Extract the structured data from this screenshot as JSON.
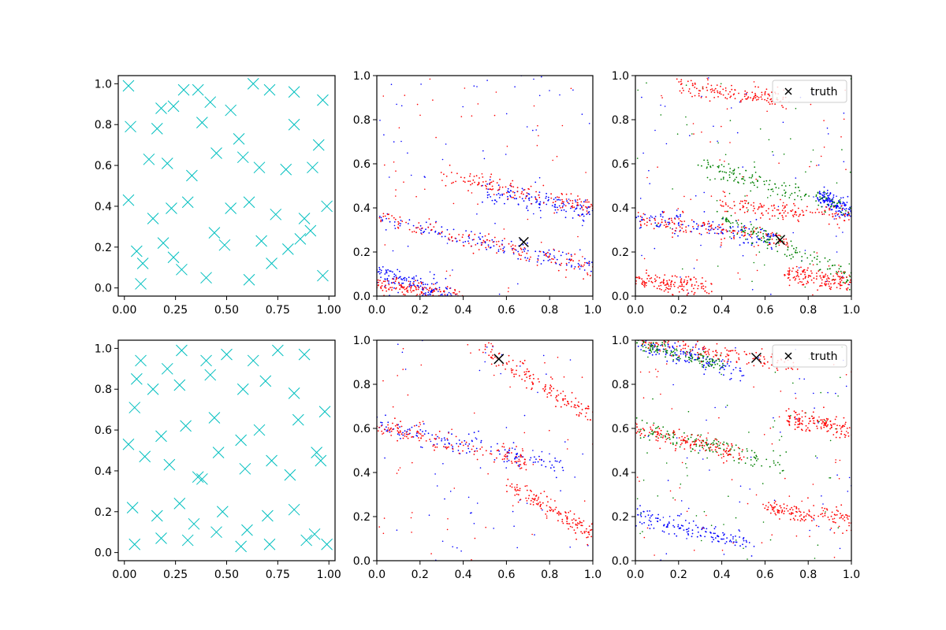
{
  "chart_data": [
    {
      "panel": "row1-col1",
      "type": "scatter",
      "title": "",
      "xlabel": "",
      "ylabel": "",
      "xlim": [
        -0.03,
        1.03
      ],
      "ylim": [
        -0.04,
        1.04
      ],
      "xticks": [
        "0.00",
        "0.25",
        "0.50",
        "0.75",
        "1.00"
      ],
      "yticks": [
        "0.0",
        "0.2",
        "0.4",
        "0.6",
        "0.8",
        "1.0"
      ],
      "grid": false,
      "series": [
        {
          "color": "#00bfbf",
          "marker": "x-large",
          "points": [
            [
              0.02,
              0.99
            ],
            [
              0.08,
              0.02
            ],
            [
              0.03,
              0.79
            ],
            [
              0.18,
              0.88
            ],
            [
              0.24,
              0.89
            ],
            [
              0.29,
              0.97
            ],
            [
              0.36,
              0.97
            ],
            [
              0.42,
              0.91
            ],
            [
              0.52,
              0.87
            ],
            [
              0.63,
              1.0
            ],
            [
              0.71,
              0.97
            ],
            [
              0.83,
              0.96
            ],
            [
              0.97,
              0.92
            ],
            [
              0.12,
              0.63
            ],
            [
              0.21,
              0.61
            ],
            [
              0.33,
              0.55
            ],
            [
              0.45,
              0.66
            ],
            [
              0.58,
              0.64
            ],
            [
              0.66,
              0.59
            ],
            [
              0.79,
              0.58
            ],
            [
              0.92,
              0.59
            ],
            [
              0.02,
              0.43
            ],
            [
              0.14,
              0.34
            ],
            [
              0.23,
              0.39
            ],
            [
              0.31,
              0.42
            ],
            [
              0.52,
              0.39
            ],
            [
              0.61,
              0.42
            ],
            [
              0.74,
              0.36
            ],
            [
              0.88,
              0.34
            ],
            [
              0.99,
              0.4
            ],
            [
              0.06,
              0.18
            ],
            [
              0.19,
              0.22
            ],
            [
              0.28,
              0.09
            ],
            [
              0.4,
              0.05
            ],
            [
              0.49,
              0.21
            ],
            [
              0.61,
              0.04
            ],
            [
              0.72,
              0.12
            ],
            [
              0.86,
              0.24
            ],
            [
              0.97,
              0.06
            ],
            [
              0.16,
              0.78
            ],
            [
              0.38,
              0.81
            ],
            [
              0.56,
              0.73
            ],
            [
              0.83,
              0.8
            ],
            [
              0.95,
              0.7
            ],
            [
              0.09,
              0.12
            ],
            [
              0.24,
              0.15
            ],
            [
              0.44,
              0.27
            ],
            [
              0.67,
              0.23
            ],
            [
              0.8,
              0.19
            ],
            [
              0.91,
              0.28
            ]
          ]
        }
      ]
    },
    {
      "panel": "row1-col2",
      "type": "scatter",
      "title": "",
      "xlabel": "",
      "ylabel": "",
      "xlim": [
        0,
        1
      ],
      "ylim": [
        0,
        1
      ],
      "xticks": [
        "0.0",
        "0.2",
        "0.4",
        "0.6",
        "0.8",
        "1.0"
      ],
      "yticks": [
        "0.0",
        "0.2",
        "0.4",
        "0.6",
        "0.8",
        "1.0"
      ],
      "grid": false,
      "series": [
        {
          "color": "#0000ff",
          "marker": "dot",
          "bands": [
            {
              "x0": 0,
              "y0": 0.36,
              "x1": 1,
              "y1": 0.13
            },
            {
              "x0": 0.5,
              "y0": 0.48,
              "x1": 1,
              "y1": 0.38
            },
            {
              "x0": 0,
              "y0": 0.11,
              "x1": 0.35,
              "y1": 0.0
            }
          ]
        },
        {
          "color": "#ff0000",
          "marker": "dot",
          "bands": [
            {
              "x0": 0,
              "y0": 0.36,
              "x1": 1,
              "y1": 0.13
            },
            {
              "x0": 0.3,
              "y0": 0.55,
              "x1": 1,
              "y1": 0.4
            },
            {
              "x0": 0,
              "y0": 0.05,
              "x1": 0.4,
              "y1": 0.0
            }
          ]
        },
        {
          "name": "truth",
          "color": "#000000",
          "marker": "x",
          "points": [
            [
              0.68,
              0.245
            ]
          ]
        }
      ]
    },
    {
      "panel": "row1-col3",
      "type": "scatter",
      "title": "",
      "xlabel": "",
      "ylabel": "",
      "xlim": [
        0,
        1
      ],
      "ylim": [
        0,
        1
      ],
      "xticks": [
        "0.0",
        "0.2",
        "0.4",
        "0.6",
        "0.8",
        "1.0"
      ],
      "yticks": [
        "0.0",
        "0.2",
        "0.4",
        "0.6",
        "0.8",
        "1.0"
      ],
      "grid": false,
      "legend": {
        "position": "top-right",
        "entries": [
          "truth"
        ]
      },
      "series": [
        {
          "color": "#0000ff",
          "marker": "dot",
          "bands": [
            {
              "x0": 0,
              "y0": 0.36,
              "x1": 0.65,
              "y1": 0.26
            },
            {
              "x0": 0.85,
              "y0": 0.45,
              "x1": 1,
              "y1": 0.38
            }
          ]
        },
        {
          "color": "#008000",
          "marker": "dot",
          "bands": [
            {
              "x0": 0.4,
              "y0": 0.35,
              "x1": 1,
              "y1": 0.08
            },
            {
              "x0": 0.3,
              "y0": 0.6,
              "x1": 1,
              "y1": 0.4
            }
          ]
        },
        {
          "color": "#ff0000",
          "marker": "dot",
          "bands": [
            {
              "x0": 0,
              "y0": 0.35,
              "x1": 0.7,
              "y1": 0.26
            },
            {
              "x0": 0.4,
              "y0": 0.41,
              "x1": 1,
              "y1": 0.36
            },
            {
              "x0": 0.2,
              "y0": 0.95,
              "x1": 0.7,
              "y1": 0.89
            },
            {
              "x0": 0,
              "y0": 0.07,
              "x1": 0.35,
              "y1": 0.04
            },
            {
              "x0": 0.7,
              "y0": 0.1,
              "x1": 1,
              "y1": 0.06
            }
          ]
        },
        {
          "name": "truth",
          "color": "#000000",
          "marker": "x",
          "points": [
            [
              0.67,
              0.255
            ]
          ]
        }
      ]
    },
    {
      "panel": "row2-col1",
      "type": "scatter",
      "title": "",
      "xlabel": "",
      "ylabel": "",
      "xlim": [
        -0.03,
        1.03
      ],
      "ylim": [
        -0.04,
        1.04
      ],
      "xticks": [
        "0.00",
        "0.25",
        "0.50",
        "0.75",
        "1.00"
      ],
      "yticks": [
        "0.0",
        "0.2",
        "0.4",
        "0.6",
        "0.8",
        "1.0"
      ],
      "grid": false,
      "series": [
        {
          "color": "#00bfbf",
          "marker": "x-large",
          "points": [
            [
              0.08,
              0.94
            ],
            [
              0.21,
              0.9
            ],
            [
              0.28,
              0.99
            ],
            [
              0.4,
              0.94
            ],
            [
              0.5,
              0.97
            ],
            [
              0.63,
              0.94
            ],
            [
              0.75,
              0.99
            ],
            [
              0.88,
              0.97
            ],
            [
              0.06,
              0.85
            ],
            [
              0.14,
              0.8
            ],
            [
              0.27,
              0.82
            ],
            [
              0.42,
              0.87
            ],
            [
              0.58,
              0.8
            ],
            [
              0.69,
              0.84
            ],
            [
              0.83,
              0.78
            ],
            [
              0.98,
              0.69
            ],
            [
              0.05,
              0.71
            ],
            [
              0.18,
              0.57
            ],
            [
              0.3,
              0.62
            ],
            [
              0.44,
              0.66
            ],
            [
              0.57,
              0.55
            ],
            [
              0.66,
              0.6
            ],
            [
              0.85,
              0.65
            ],
            [
              0.94,
              0.49
            ],
            [
              0.02,
              0.53
            ],
            [
              0.1,
              0.47
            ],
            [
              0.22,
              0.43
            ],
            [
              0.36,
              0.37
            ],
            [
              0.38,
              0.36
            ],
            [
              0.46,
              0.49
            ],
            [
              0.59,
              0.41
            ],
            [
              0.72,
              0.45
            ],
            [
              0.81,
              0.38
            ],
            [
              0.96,
              0.45
            ],
            [
              0.04,
              0.22
            ],
            [
              0.16,
              0.18
            ],
            [
              0.27,
              0.24
            ],
            [
              0.34,
              0.14
            ],
            [
              0.48,
              0.2
            ],
            [
              0.6,
              0.11
            ],
            [
              0.7,
              0.18
            ],
            [
              0.83,
              0.21
            ],
            [
              0.93,
              0.09
            ],
            [
              0.05,
              0.04
            ],
            [
              0.18,
              0.07
            ],
            [
              0.31,
              0.06
            ],
            [
              0.45,
              0.1
            ],
            [
              0.57,
              0.03
            ],
            [
              0.71,
              0.04
            ],
            [
              0.89,
              0.06
            ],
            [
              0.99,
              0.04
            ]
          ]
        }
      ]
    },
    {
      "panel": "row2-col2",
      "type": "scatter",
      "title": "",
      "xlabel": "",
      "ylabel": "",
      "xlim": [
        0,
        1
      ],
      "ylim": [
        0,
        1
      ],
      "xticks": [
        "0.0",
        "0.2",
        "0.4",
        "0.6",
        "0.8",
        "1.0"
      ],
      "yticks": [
        "0.0",
        "0.2",
        "0.4",
        "0.6",
        "0.8",
        "1.0"
      ],
      "grid": false,
      "series": [
        {
          "color": "#0000ff",
          "marker": "dot",
          "bands": [
            {
              "x0": 0,
              "y0": 0.62,
              "x1": 0.9,
              "y1": 0.42
            }
          ]
        },
        {
          "color": "#ff0000",
          "marker": "dot",
          "bands": [
            {
              "x0": 0,
              "y0": 0.61,
              "x1": 0.7,
              "y1": 0.45
            },
            {
              "x0": 0.5,
              "y0": 0.95,
              "x1": 1,
              "y1": 0.65
            },
            {
              "x0": 0.6,
              "y0": 0.35,
              "x1": 1,
              "y1": 0.12
            }
          ]
        },
        {
          "name": "truth",
          "color": "#000000",
          "marker": "x",
          "points": [
            [
              0.565,
              0.915
            ]
          ]
        }
      ]
    },
    {
      "panel": "row2-col3",
      "type": "scatter",
      "title": "",
      "xlabel": "",
      "ylabel": "",
      "xlim": [
        0,
        1
      ],
      "ylim": [
        0,
        1
      ],
      "xticks": [
        "0.0",
        "0.2",
        "0.4",
        "0.6",
        "0.8",
        "1.0"
      ],
      "yticks": [
        "0.0",
        "0.2",
        "0.4",
        "0.6",
        "0.8",
        "1.0"
      ],
      "grid": false,
      "legend": {
        "position": "top-right",
        "entries": [
          "truth"
        ]
      },
      "series": [
        {
          "color": "#0000ff",
          "marker": "dot",
          "bands": [
            {
              "x0": 0,
              "y0": 1.0,
              "x1": 0.5,
              "y1": 0.85
            },
            {
              "x0": 0,
              "y0": 0.2,
              "x1": 0.55,
              "y1": 0.08
            }
          ]
        },
        {
          "color": "#008000",
          "marker": "dot",
          "bands": [
            {
              "x0": 0,
              "y0": 0.6,
              "x1": 0.7,
              "y1": 0.44
            },
            {
              "x0": 0,
              "y0": 1.0,
              "x1": 0.4,
              "y1": 0.88
            }
          ]
        },
        {
          "color": "#ff0000",
          "marker": "dot",
          "bands": [
            {
              "x0": 0,
              "y0": 1.0,
              "x1": 0.75,
              "y1": 0.88
            },
            {
              "x0": 0,
              "y0": 0.6,
              "x1": 0.5,
              "y1": 0.48
            },
            {
              "x0": 0.6,
              "y0": 0.24,
              "x1": 1,
              "y1": 0.18
            },
            {
              "x0": 0.7,
              "y0": 0.65,
              "x1": 1,
              "y1": 0.59
            }
          ]
        },
        {
          "name": "truth",
          "color": "#000000",
          "marker": "x",
          "points": [
            [
              0.56,
              0.92
            ]
          ]
        }
      ]
    }
  ]
}
